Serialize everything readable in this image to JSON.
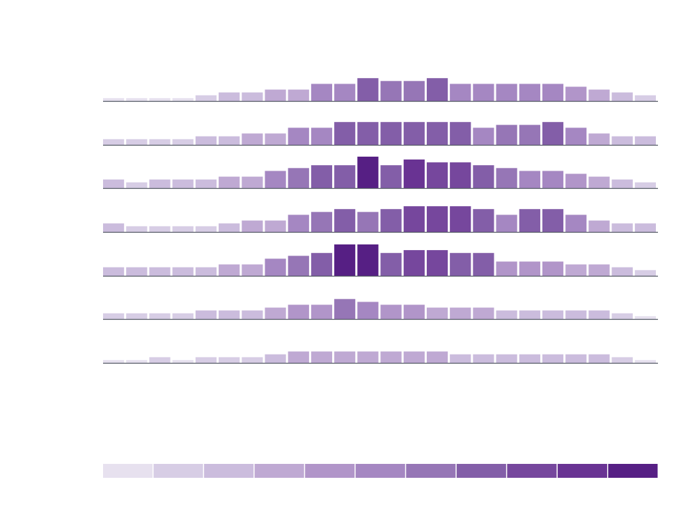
{
  "chart_data": {
    "type": "bar",
    "title": "",
    "xlabel": "",
    "ylabel": "",
    "grid": false,
    "legend": "bottom",
    "ylim": [
      0,
      11
    ],
    "colors": [
      "#e7e1ef",
      "#d7cde5",
      "#cbbcdd",
      "#bfa9d3",
      "#b195c9",
      "#a587c2",
      "#9676b6",
      "#835ea8",
      "#76479d",
      "#693393",
      "#561f84"
    ],
    "rows": [
      [
        1,
        1,
        1,
        1,
        2,
        3,
        3,
        4,
        4,
        6,
        6,
        8,
        7,
        7,
        8,
        6,
        6,
        6,
        6,
        6,
        5,
        4,
        3,
        2
      ],
      [
        2,
        2,
        2,
        2,
        3,
        3,
        4,
        4,
        6,
        6,
        8,
        8,
        8,
        8,
        8,
        8,
        6,
        7,
        7,
        8,
        6,
        4,
        3,
        3
      ],
      [
        3,
        2,
        3,
        3,
        3,
        4,
        4,
        6,
        7,
        8,
        8,
        11,
        8,
        10,
        9,
        9,
        8,
        7,
        6,
        6,
        5,
        4,
        3,
        2
      ],
      [
        3,
        2,
        2,
        2,
        2,
        3,
        4,
        4,
        6,
        7,
        8,
        7,
        8,
        9,
        9,
        9,
        8,
        6,
        8,
        8,
        6,
        4,
        3,
        3
      ],
      [
        3,
        3,
        3,
        3,
        3,
        4,
        4,
        6,
        7,
        8,
        11,
        11,
        8,
        9,
        9,
        8,
        8,
        5,
        5,
        5,
        4,
        4,
        3,
        2
      ],
      [
        2,
        2,
        2,
        2,
        3,
        3,
        3,
        4,
        5,
        5,
        7,
        6,
        5,
        5,
        4,
        4,
        4,
        3,
        3,
        3,
        3,
        3,
        2,
        1
      ],
      [
        1,
        1,
        2,
        1,
        2,
        2,
        2,
        3,
        4,
        4,
        4,
        4,
        4,
        4,
        4,
        3,
        3,
        3,
        3,
        3,
        3,
        3,
        2,
        1
      ]
    ],
    "legend_bins": [
      0,
      1,
      2,
      3,
      4,
      5,
      6,
      7,
      8,
      9,
      10
    ]
  }
}
